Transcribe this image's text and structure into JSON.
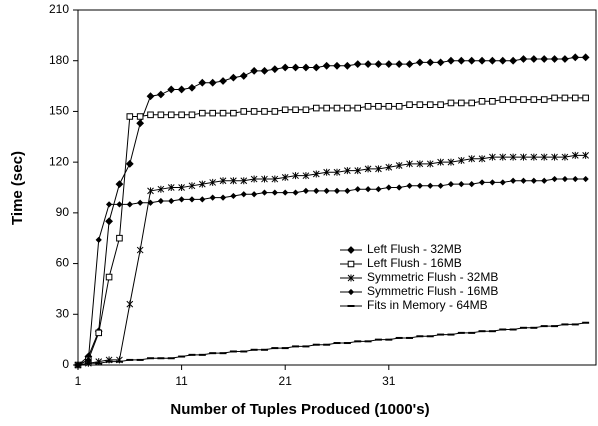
{
  "chart_data": {
    "type": "line",
    "xlabel": "Number of Tuples Produced (1000's)",
    "ylabel": "Time (sec)",
    "x": [
      1,
      2,
      3,
      4,
      5,
      6,
      7,
      8,
      9,
      10,
      11,
      12,
      13,
      14,
      15,
      16,
      17,
      18,
      19,
      20,
      21,
      22,
      23,
      24,
      25,
      26,
      27,
      28,
      29,
      30,
      31,
      32,
      33,
      34,
      35,
      36,
      37,
      38,
      39,
      40,
      41,
      42,
      43,
      44,
      45,
      46,
      47,
      48,
      49,
      50
    ],
    "series": [
      {
        "name": "Left Flush - 32MB",
        "color": "#000000",
        "marker": "diamond",
        "values": [
          0,
          5,
          20,
          85,
          107,
          119,
          143,
          159,
          160,
          163,
          163,
          164,
          167,
          167,
          168,
          170,
          171,
          174,
          174,
          175,
          176,
          176,
          176,
          176,
          177,
          177,
          177,
          178,
          178,
          178,
          178,
          178,
          178,
          179,
          179,
          179,
          180,
          180,
          180,
          180,
          180,
          180,
          180,
          181,
          181,
          181,
          181,
          181,
          182,
          182
        ]
      },
      {
        "name": "Left Flush - 16MB",
        "color": "#000000",
        "marker": "square",
        "values": [
          0,
          3,
          19,
          52,
          75,
          147,
          147,
          148,
          148,
          148,
          148,
          148,
          149,
          149,
          149,
          149,
          150,
          150,
          150,
          150,
          151,
          151,
          151,
          152,
          152,
          152,
          152,
          152,
          153,
          153,
          153,
          153,
          154,
          154,
          154,
          154,
          155,
          155,
          155,
          156,
          156,
          157,
          157,
          157,
          157,
          157,
          158,
          158,
          158,
          158
        ]
      },
      {
        "name": "Symmetric Flush - 32MB",
        "color": "#000000",
        "marker": "star",
        "values": [
          0,
          1,
          2,
          3,
          3,
          36,
          68,
          103,
          104,
          105,
          105,
          106,
          107,
          108,
          109,
          109,
          109,
          110,
          110,
          110,
          111,
          112,
          112,
          113,
          114,
          114,
          115,
          115,
          116,
          116,
          117,
          118,
          119,
          119,
          119,
          120,
          120,
          121,
          122,
          122,
          123,
          123,
          123,
          123,
          123,
          123,
          123,
          123,
          124,
          124
        ]
      },
      {
        "name": "Symmetric Flush - 16MB",
        "color": "#000000",
        "marker": "small-diamond",
        "values": [
          0,
          3,
          74,
          95,
          95,
          95,
          96,
          96,
          97,
          97,
          98,
          98,
          98,
          99,
          99,
          100,
          101,
          101,
          102,
          102,
          102,
          102,
          103,
          103,
          103,
          103,
          103,
          104,
          104,
          104,
          105,
          105,
          106,
          106,
          106,
          106,
          107,
          107,
          107,
          108,
          108,
          108,
          109,
          109,
          109,
          109,
          110,
          110,
          110,
          110
        ]
      },
      {
        "name": "Fits in Memory - 64MB",
        "color": "#000000",
        "marker": "dash",
        "values": [
          0,
          1,
          1,
          2,
          2,
          3,
          3,
          4,
          4,
          4,
          5,
          6,
          6,
          7,
          7,
          8,
          8,
          9,
          9,
          10,
          10,
          11,
          11,
          12,
          12,
          13,
          13,
          14,
          14,
          15,
          15,
          16,
          16,
          17,
          17,
          18,
          18,
          19,
          19,
          20,
          20,
          21,
          21,
          22,
          22,
          23,
          23,
          24,
          24,
          25
        ]
      }
    ],
    "xlim": [
      1,
      51
    ],
    "xticks": [
      1,
      11,
      21,
      31
    ],
    "ylim": [
      0,
      210
    ],
    "yticks": [
      0,
      30,
      60,
      90,
      120,
      150,
      180,
      210
    ],
    "grid": false,
    "legend": "center right"
  }
}
